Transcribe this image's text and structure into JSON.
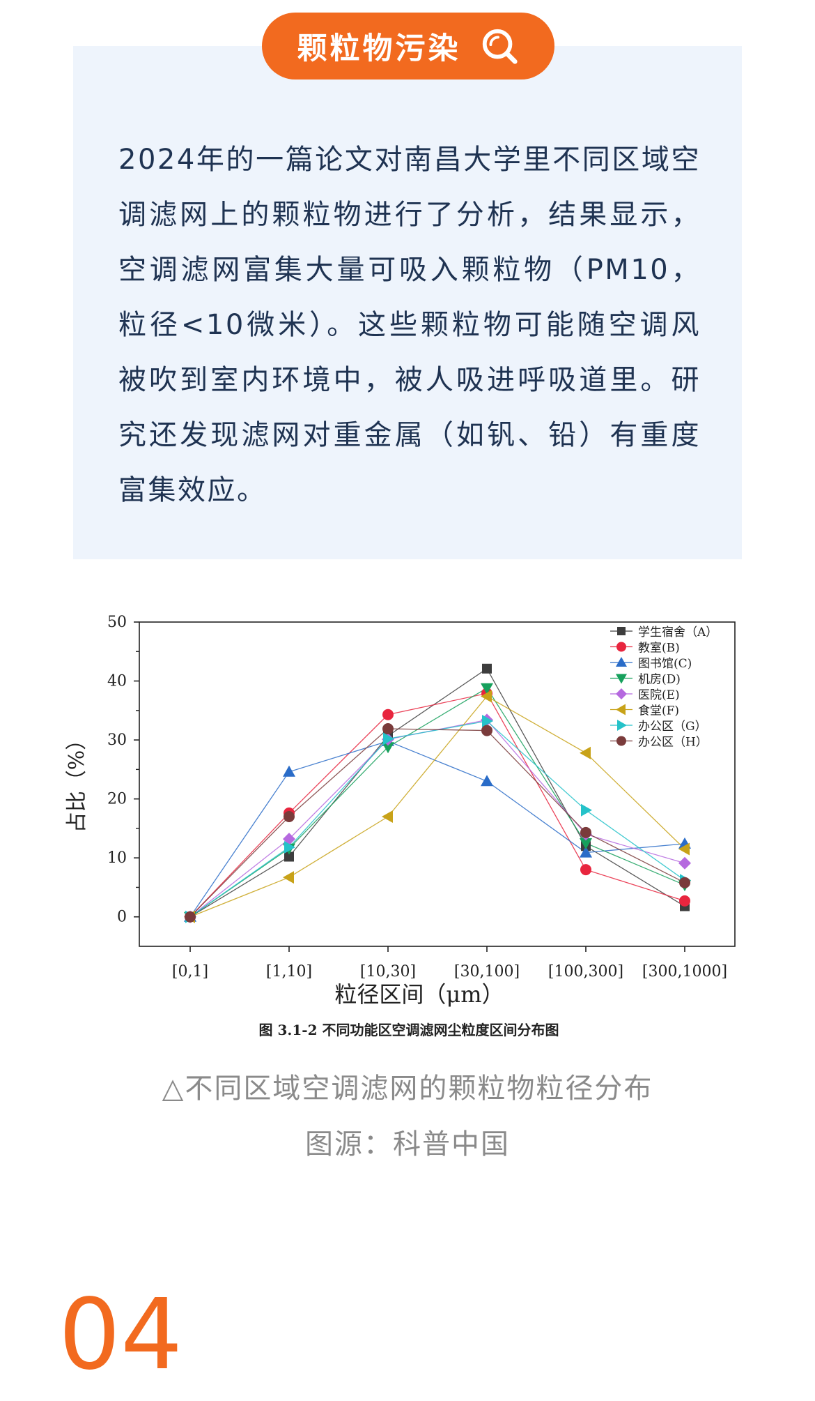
{
  "header": {
    "title": "颗粒物污染",
    "icon": "search-icon",
    "accent": "#f26a1f"
  },
  "body_text": "2024年的一篇论文对南昌大学里不同区域空调滤网上的颗粒物进行了分析，结果显示，空调滤网富集大量可吸入颗粒物（PM10，粒径<10微米）。这些颗粒物可能随空调风被吹到室内环境中，被人吸进呼吸道里。研究还发现滤网对重金属（如钒、铅）有重度富集效应。",
  "figure": {
    "title": "图 3.1-2  不同功能区空调滤网尘粒度区间分布图"
  },
  "caption": "△不同区域空调滤网的颗粒物粒径分布",
  "source": "图源：科普中国",
  "section_number": "04",
  "chart_data": {
    "type": "line",
    "categories": [
      "[0,1]",
      "[1,10]",
      "[10,30]",
      "[30,100]",
      "[100,300]",
      "[300,1000]"
    ],
    "xlabel": "粒径区间（μm）",
    "ylabel": "占比（%）",
    "ylim": [
      -5,
      50
    ],
    "yticks": [
      0,
      10,
      20,
      30,
      40,
      50
    ],
    "legend_position": "top-right",
    "series": [
      {
        "name": "学生宿舍（A）",
        "marker": "square",
        "color": "#3d3d3d",
        "values": [
          0,
          10.2,
          30.7,
          42.1,
          12.0,
          1.8
        ]
      },
      {
        "name": "教室(B)",
        "marker": "circle",
        "color": "#e8253e",
        "values": [
          0,
          17.6,
          34.3,
          37.9,
          8.0,
          2.7
        ]
      },
      {
        "name": "图书馆(C)",
        "marker": "triangle-up",
        "color": "#2a6cc8",
        "values": [
          0,
          24.6,
          29.8,
          23.0,
          10.9,
          12.4
        ]
      },
      {
        "name": "机房(D)",
        "marker": "triangle-down",
        "color": "#16a05c",
        "values": [
          0,
          11.6,
          28.8,
          38.8,
          12.5,
          5.4
        ]
      },
      {
        "name": "医院(E)",
        "marker": "diamond",
        "color": "#b569df",
        "values": [
          0,
          13.2,
          30.1,
          33.4,
          14.0,
          9.1
        ]
      },
      {
        "name": "食堂(F)",
        "marker": "triangle-left",
        "color": "#c8a218",
        "values": [
          0,
          6.7,
          17.0,
          37.4,
          27.8,
          11.5
        ]
      },
      {
        "name": "办公区（G）",
        "marker": "triangle-right",
        "color": "#25c2c9",
        "values": [
          0,
          11.8,
          30.2,
          33.2,
          18.1,
          6.2
        ]
      },
      {
        "name": "办公区（H）",
        "marker": "circle",
        "color": "#7a3b3b",
        "values": [
          0,
          17.0,
          31.9,
          31.6,
          14.3,
          5.8
        ]
      }
    ]
  }
}
